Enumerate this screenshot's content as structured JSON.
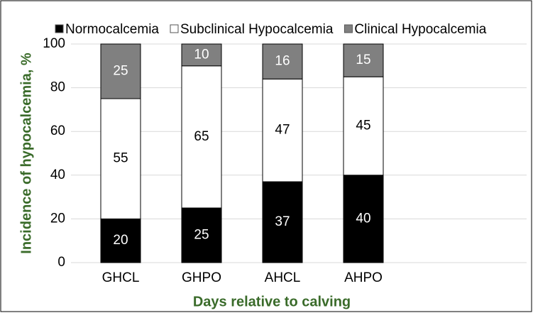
{
  "chart_data": {
    "type": "bar",
    "stacked": true,
    "x_label": "Days relative to calving",
    "y_label": "Incidence of hypocalcemia, %",
    "categories": [
      "GHCL",
      "GHPO",
      "AHCL",
      "AHPO"
    ],
    "series": [
      {
        "name": "Normocalcemia",
        "color": "#000000",
        "values": [
          20,
          25,
          37,
          40
        ]
      },
      {
        "name": "Subclinical Hypocalcemia",
        "color": "#ffffff",
        "values": [
          55,
          65,
          47,
          45
        ]
      },
      {
        "name": "Clinical Hypocalcemia",
        "color": "#808080",
        "values": [
          25,
          10,
          16,
          15
        ]
      }
    ],
    "ylim": [
      0,
      100
    ],
    "yticks": [
      0,
      20,
      40,
      60,
      80,
      100
    ],
    "grid": true,
    "legend": "top"
  }
}
